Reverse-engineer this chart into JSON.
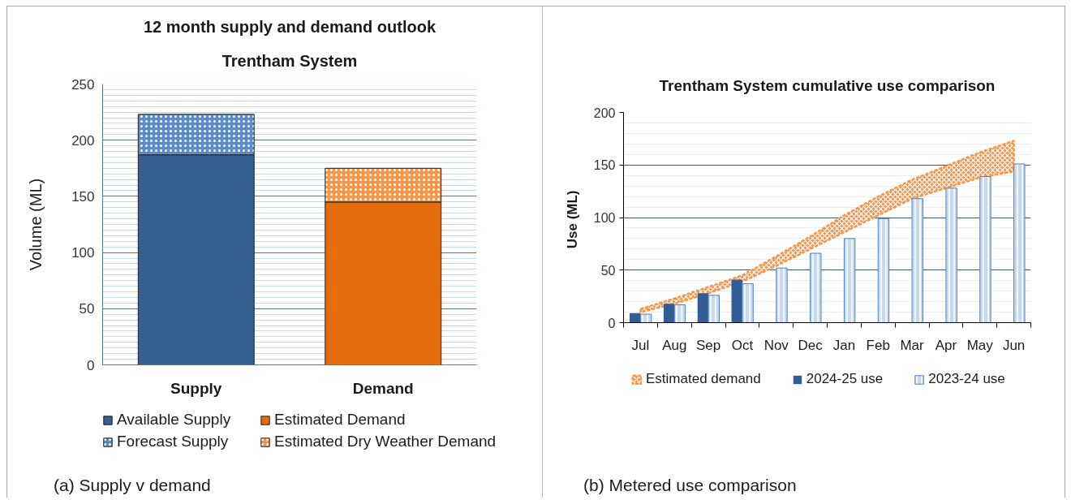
{
  "chart_data": [
    {
      "type": "bar",
      "title": "12 month supply and demand outlook",
      "subtitle": "Trentham System",
      "ylabel": "Volume (ML)",
      "categories": [
        "Supply",
        "Demand"
      ],
      "stacked": true,
      "series": [
        {
          "name": "Available Supply",
          "color": "#376092",
          "values": [
            187,
            null
          ]
        },
        {
          "name": "Forecast Supply",
          "color": "#5b8cc8",
          "values": [
            36,
            null
          ]
        },
        {
          "name": "Estimated Demand",
          "color": "#e46c0a",
          "values": [
            null,
            145
          ]
        },
        {
          "name": "Estimated Dry Weather Demand",
          "color": "#f79646",
          "values": [
            null,
            30
          ]
        }
      ],
      "ylim": [
        0,
        250
      ],
      "yticks": [
        0,
        50,
        100,
        150,
        200,
        250
      ],
      "grid": "y",
      "legend": "bottom",
      "annotations": [
        "(a) Supply v demand"
      ]
    },
    {
      "type": "bar",
      "title": "Trentham System cumulative use comparison",
      "ylabel": "Use  (ML)",
      "categories": [
        "Jul",
        "Aug",
        "Sep",
        "Oct",
        "Nov",
        "Dec",
        "Jan",
        "Feb",
        "Mar",
        "Apr",
        "May",
        "Jun"
      ],
      "series": [
        {
          "name": "Estimated demand",
          "type": "area",
          "color": "#f79646",
          "values": [
            null,
            null,
            null,
            null,
            null,
            null,
            null,
            null,
            null,
            null,
            null,
            null
          ],
          "lower": [
            10,
            18,
            28,
            39,
            54,
            70,
            86,
            102,
            118,
            128,
            138,
            144
          ],
          "upper": [
            13,
            23,
            34,
            45,
            63,
            82,
            102,
            120,
            136,
            149,
            162,
            173
          ]
        },
        {
          "name": "2024-25 use",
          "color": "#335e95",
          "values": [
            9,
            18,
            28,
            41,
            null,
            null,
            null,
            null,
            null,
            null,
            null,
            null
          ]
        },
        {
          "name": "2023-24 use",
          "color": "#c5d9f1",
          "values": [
            8,
            17,
            26,
            37,
            52,
            66,
            80,
            99,
            118,
            128,
            139,
            151
          ]
        }
      ],
      "ylim": [
        0,
        200
      ],
      "yticks": [
        0,
        50,
        100,
        150,
        200
      ],
      "grid": "y",
      "legend": "bottom",
      "annotations": [
        "(b) Metered use comparison"
      ]
    }
  ]
}
